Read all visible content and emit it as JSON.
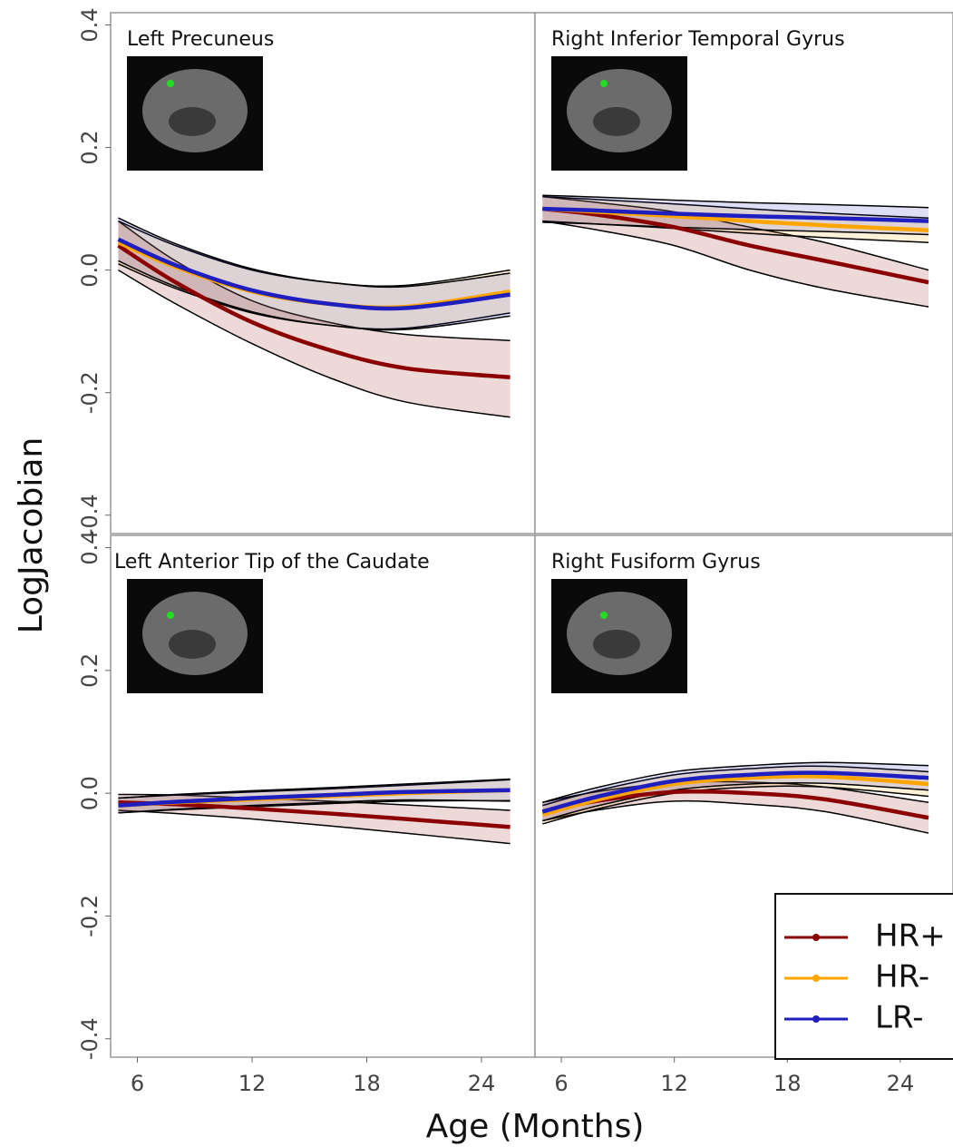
{
  "xlabel": "Age (Months)",
  "ylabel": "LogJacobian",
  "chart_data": [
    {
      "type": "line",
      "title": "Left Precuneus",
      "x": [
        5,
        8,
        12,
        16,
        20,
        25.5
      ],
      "xlim": [
        4.6,
        26.8
      ],
      "ylim": [
        -0.43,
        0.42
      ],
      "yticks": [
        -0.4,
        -0.2,
        {
          "value": 0,
          "label": "0.0"
        },
        0.2,
        0.4
      ],
      "series": [
        {
          "color": "#8b0000",
          "values": [
            0.04,
            -0.02,
            -0.085,
            -0.13,
            -0.16,
            -0.175
          ],
          "lower": [
            0.0,
            -0.055,
            -0.12,
            -0.175,
            -0.215,
            -0.24
          ],
          "upper": [
            0.08,
            0.015,
            -0.05,
            -0.085,
            -0.105,
            -0.115
          ]
        },
        {
          "color": "#ffa500",
          "values": [
            0.045,
            0.005,
            -0.035,
            -0.055,
            -0.06,
            -0.035
          ],
          "lower": [
            0.01,
            -0.03,
            -0.07,
            -0.09,
            -0.095,
            -0.07
          ],
          "upper": [
            0.08,
            0.04,
            0.0,
            -0.02,
            -0.025,
            0.0
          ]
        },
        {
          "color": "#1f1fbf",
          "values": [
            0.05,
            0.008,
            -0.033,
            -0.055,
            -0.062,
            -0.04
          ],
          "lower": [
            0.015,
            -0.027,
            -0.068,
            -0.09,
            -0.097,
            -0.075
          ],
          "upper": [
            0.085,
            0.043,
            0.002,
            -0.02,
            -0.027,
            -0.005
          ]
        }
      ]
    },
    {
      "type": "line",
      "title": "Right Inferior Temporal Gyrus",
      "x": [
        5,
        8,
        12,
        16,
        20,
        25.5
      ],
      "xlim": [
        4.6,
        26.8
      ],
      "ylim": [
        -0.43,
        0.42
      ],
      "series": [
        {
          "color": "#8b0000",
          "values": [
            0.1,
            0.09,
            0.07,
            0.04,
            0.015,
            -0.02
          ],
          "lower": [
            0.08,
            0.065,
            0.04,
            0.0,
            -0.03,
            -0.06
          ],
          "upper": [
            0.12,
            0.11,
            0.095,
            0.07,
            0.045,
            0.0
          ]
        },
        {
          "color": "#ffa500",
          "values": [
            0.1,
            0.095,
            0.088,
            0.08,
            0.073,
            0.065
          ],
          "lower": [
            0.08,
            0.075,
            0.068,
            0.06,
            0.053,
            0.045
          ],
          "upper": [
            0.12,
            0.115,
            0.108,
            0.1,
            0.093,
            0.085
          ]
        },
        {
          "color": "#1f1fbf",
          "values": [
            0.1,
            0.097,
            0.092,
            0.088,
            0.085,
            0.08
          ],
          "lower": [
            0.078,
            0.075,
            0.07,
            0.066,
            0.063,
            0.058
          ],
          "upper": [
            0.122,
            0.119,
            0.114,
            0.11,
            0.107,
            0.102
          ]
        }
      ]
    },
    {
      "type": "line",
      "title": "Left Anterior Tip of the Caudate",
      "x": [
        5,
        8,
        12,
        16,
        20,
        25.5
      ],
      "xlim": [
        4.6,
        26.8
      ],
      "ylim": [
        -0.43,
        0.42
      ],
      "xticks": [
        6,
        12,
        18,
        24
      ],
      "yticks": [
        -0.4,
        -0.2,
        {
          "value": 0,
          "label": "0.0"
        },
        0.2,
        0.4
      ],
      "series": [
        {
          "color": "#8b0000",
          "values": [
            -0.015,
            -0.018,
            -0.025,
            -0.033,
            -0.042,
            -0.055
          ],
          "lower": [
            -0.028,
            -0.033,
            -0.042,
            -0.053,
            -0.065,
            -0.082
          ],
          "upper": [
            -0.002,
            -0.003,
            -0.008,
            -0.013,
            -0.019,
            -0.028
          ]
        },
        {
          "color": "#ffa500",
          "values": [
            -0.02,
            -0.015,
            -0.01,
            -0.005,
            0.0,
            0.005
          ],
          "lower": [
            -0.032,
            -0.027,
            -0.022,
            -0.017,
            -0.013,
            -0.012
          ],
          "upper": [
            -0.008,
            -0.003,
            0.002,
            0.007,
            0.013,
            0.022
          ]
        },
        {
          "color": "#1f1fbf",
          "values": [
            -0.02,
            -0.014,
            -0.008,
            -0.003,
            0.002,
            0.005
          ],
          "lower": [
            -0.032,
            -0.026,
            -0.02,
            -0.015,
            -0.011,
            -0.013
          ],
          "upper": [
            -0.008,
            -0.002,
            0.004,
            0.009,
            0.015,
            0.023
          ]
        }
      ]
    },
    {
      "type": "line",
      "title": "Right Fusiform Gyrus",
      "x": [
        5,
        8,
        12,
        16,
        20,
        25.5
      ],
      "xlim": [
        4.6,
        26.8
      ],
      "ylim": [
        -0.43,
        0.42
      ],
      "xticks": [
        6,
        12,
        18,
        24
      ],
      "series": [
        {
          "name": "HR+",
          "color": "#8b0000",
          "values": [
            -0.03,
            -0.012,
            0.002,
            0.0,
            -0.01,
            -0.04
          ],
          "lower": [
            -0.045,
            -0.027,
            -0.013,
            -0.018,
            -0.03,
            -0.065
          ],
          "upper": [
            -0.015,
            0.003,
            0.017,
            0.018,
            0.01,
            -0.015
          ]
        },
        {
          "name": "HR-",
          "color": "#ffa500",
          "values": [
            -0.035,
            -0.01,
            0.015,
            0.025,
            0.027,
            0.015
          ],
          "lower": [
            -0.05,
            -0.025,
            0.0,
            0.01,
            0.01,
            -0.005
          ],
          "upper": [
            -0.02,
            0.005,
            0.03,
            0.04,
            0.044,
            0.035
          ]
        },
        {
          "name": "LR-",
          "color": "#1f1fbf",
          "values": [
            -0.03,
            -0.005,
            0.02,
            0.03,
            0.033,
            0.025
          ],
          "lower": [
            -0.045,
            -0.02,
            0.005,
            0.015,
            0.016,
            0.005
          ],
          "upper": [
            -0.015,
            0.01,
            0.035,
            0.045,
            0.05,
            0.045
          ]
        }
      ]
    }
  ]
}
